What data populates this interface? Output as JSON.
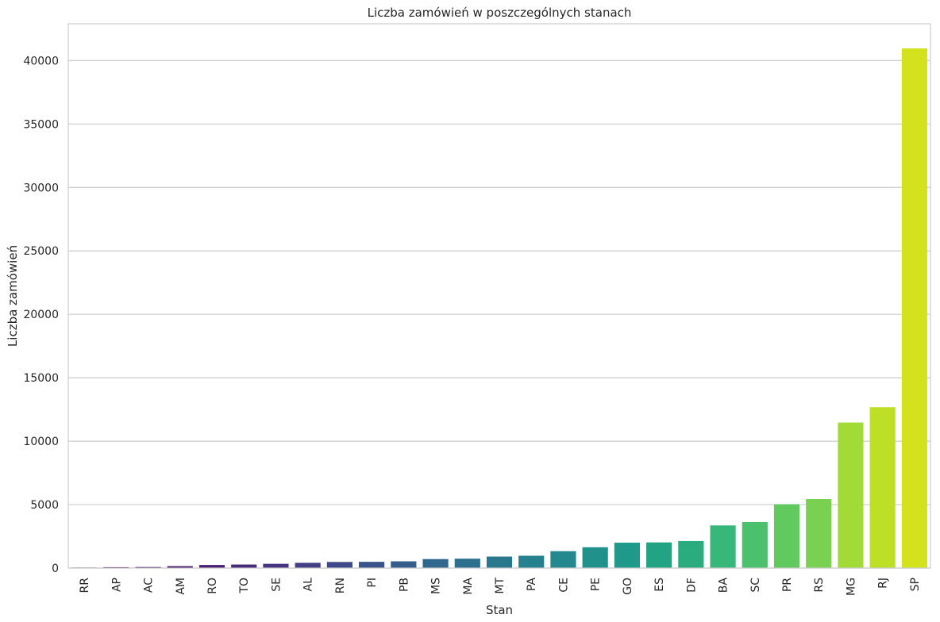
{
  "chart_data": {
    "type": "bar",
    "title": "Liczba zamówień w poszczególnych stanach",
    "xlabel": "Stan",
    "ylabel": "Liczba zamówień",
    "ylim": [
      0,
      42900
    ],
    "yticks": [
      0,
      5000,
      10000,
      15000,
      20000,
      25000,
      30000,
      35000,
      40000
    ],
    "grid": "horizontal",
    "palette": "viridis",
    "categories": [
      "RR",
      "AP",
      "AC",
      "AM",
      "RO",
      "TO",
      "SE",
      "AL",
      "RN",
      "PI",
      "PB",
      "MS",
      "MA",
      "MT",
      "PA",
      "CE",
      "PE",
      "GO",
      "ES",
      "DF",
      "BA",
      "SC",
      "PR",
      "RS",
      "MG",
      "RJ",
      "SP"
    ],
    "values": [
      41,
      67,
      80,
      147,
      243,
      278,
      334,
      412,
      480,
      490,
      530,
      708,
      740,
      905,
      970,
      1330,
      1640,
      2000,
      2020,
      2130,
      3360,
      3630,
      5030,
      5440,
      11470,
      12680,
      40960
    ],
    "colors": [
      "#440154",
      "#46075a",
      "#471063",
      "#48186a",
      "#482172",
      "#472a7a",
      "#463480",
      "#423f85",
      "#3e4989",
      "#3a538b",
      "#355e8d",
      "#31678e",
      "#2d708e",
      "#2a788e",
      "#26818e",
      "#23898e",
      "#21918c",
      "#1f998a",
      "#22a384",
      "#2aac7f",
      "#38b77a",
      "#4bc16d",
      "#61ca5e",
      "#7ad151",
      "#a2da37",
      "#bddf26",
      "#d3e21c"
    ]
  }
}
